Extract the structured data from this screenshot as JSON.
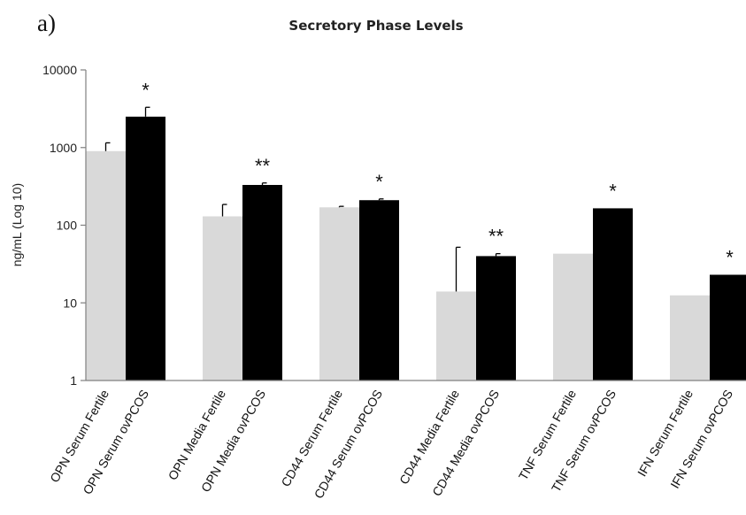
{
  "chart_data": {
    "type": "bar",
    "panel_label": "a)",
    "title": "Secretory Phase Levels",
    "xlabel": "",
    "ylabel": "ng/mL (Log 10)",
    "yscale": "log",
    "ylim": [
      1,
      10000
    ],
    "yticks": [
      "1",
      "10",
      "100",
      "1000",
      "10000"
    ],
    "grid": false,
    "legend": "none",
    "colors": {
      "fertile": "#d9d9d9",
      "ovpcos": "#000000",
      "axis": "#808080",
      "error": "#000000"
    },
    "categories": [
      "OPN Serum Fertile",
      "OPN Serum ovPCOS",
      "OPN Media Fertile",
      "OPN Media ovPCOS",
      "CD44 Serum Fertile",
      "CD44 Serum ovPCOS",
      "CD44 Media Fertile",
      "CD44 Media ovPCOS",
      "TNF Serum Fertile",
      "TNF Serum ovPCOS",
      "IFN Serum Fertile",
      "IFN Serum ovPCOS"
    ],
    "groups": [
      "fertile",
      "ovpcos",
      "fertile",
      "ovpcos",
      "fertile",
      "ovpcos",
      "fertile",
      "ovpcos",
      "fertile",
      "ovpcos",
      "fertile",
      "ovpcos"
    ],
    "values": [
      900,
      2500,
      130,
      330,
      170,
      210,
      14,
      40,
      43,
      165,
      12.5,
      23
    ],
    "error_upper": [
      1150,
      3300,
      185,
      350,
      175,
      218,
      52,
      43,
      null,
      null,
      null,
      null
    ],
    "significance": [
      "",
      "*",
      "",
      "**",
      "",
      "*",
      "",
      "**",
      "",
      "*",
      "",
      "*"
    ]
  }
}
